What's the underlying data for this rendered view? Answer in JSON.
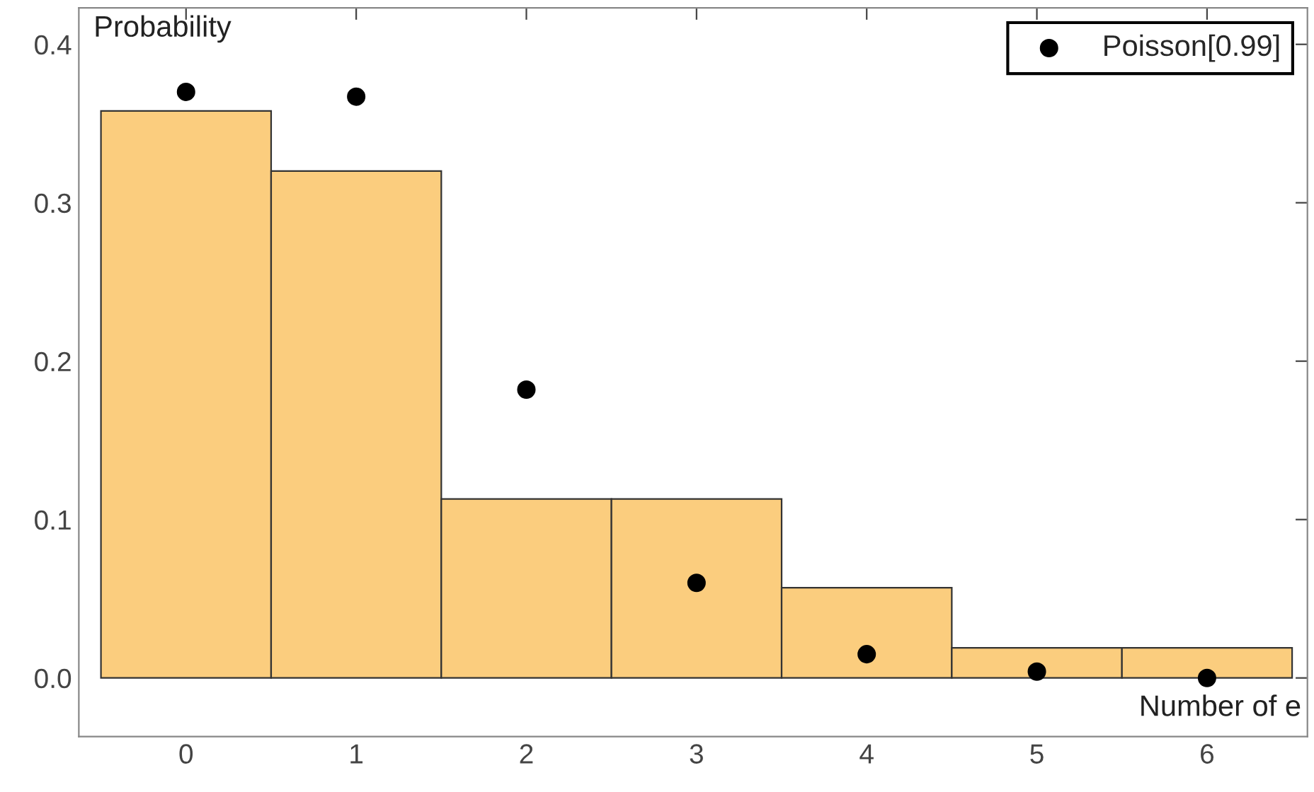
{
  "chart_data": {
    "type": "histogram",
    "xlabel": "Number of e",
    "ylabel": "Probability",
    "bins": [
      -0.5,
      0.5,
      1.5,
      2.5,
      3.5,
      4.5,
      5.5,
      6.5
    ],
    "values": [
      0.358,
      0.32,
      0.113,
      0.113,
      0.057,
      0.019,
      0.019
    ],
    "color": "#fbcd7e",
    "series": [
      {
        "type": "scatter",
        "name": "Poisson[0.99]",
        "color": "#000000",
        "x": [
          0,
          1,
          2,
          3,
          4,
          5,
          6
        ],
        "values": [
          0.37,
          0.367,
          0.182,
          0.06,
          0.015,
          0.004,
          0.0
        ]
      }
    ],
    "xlim": [
      -0.63,
      6.59
    ],
    "ylim": [
      -0.037,
      0.423
    ],
    "xticks": [
      0,
      1,
      2,
      3,
      4,
      5,
      6
    ],
    "yticks": [
      {
        "value": 0,
        "label": "0.0"
      },
      0.1,
      0.2,
      0.3,
      0.4
    ],
    "marker": "circle",
    "legend": "top right",
    "grid": false
  }
}
